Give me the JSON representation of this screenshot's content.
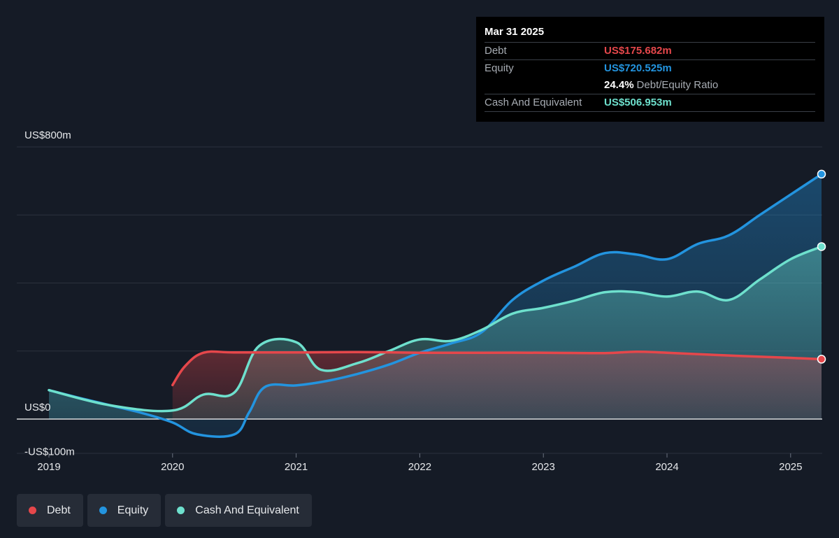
{
  "colors": {
    "debt": "#e5474b",
    "equity": "#2394df",
    "cash": "#6ee0cd",
    "grid": "#2c323d",
    "zero": "#ffffff"
  },
  "tooltip": {
    "date": "Mar 31 2025",
    "debt_label": "Debt",
    "debt_value": "US$175.682m",
    "equity_label": "Equity",
    "equity_value": "US$720.525m",
    "ratio_value": "24.4%",
    "ratio_label": "Debt/Equity Ratio",
    "cash_label": "Cash And Equivalent",
    "cash_value": "US$506.953m"
  },
  "legend": [
    {
      "key": "debt",
      "label": "Debt"
    },
    {
      "key": "equity",
      "label": "Equity"
    },
    {
      "key": "cash",
      "label": "Cash And Equivalent"
    }
  ],
  "chart_data": {
    "type": "area",
    "title": "",
    "xlabel": "",
    "ylabel": "",
    "ylim": [
      -100,
      800
    ],
    "y_ticks": [
      {
        "value": 800,
        "label": "US$800m"
      },
      {
        "value": 0,
        "label": "US$0"
      },
      {
        "value": -100,
        "label": "-US$100m"
      }
    ],
    "x_ticks": [
      2019,
      2020,
      2021,
      2022,
      2023,
      2024,
      2025
    ],
    "xlim": [
      2019,
      2025.25
    ],
    "grid": true,
    "legend_position": "bottom-left",
    "series": [
      {
        "key": "debt",
        "name": "Debt",
        "points": [
          [
            2020.0,
            100
          ],
          [
            2020.1,
            155
          ],
          [
            2020.25,
            195
          ],
          [
            2020.5,
            196
          ],
          [
            2021.0,
            196
          ],
          [
            2021.5,
            197
          ],
          [
            2022.0,
            195
          ],
          [
            2022.5,
            195
          ],
          [
            2023.0,
            195
          ],
          [
            2023.5,
            194
          ],
          [
            2023.75,
            198
          ],
          [
            2024.0,
            195
          ],
          [
            2024.5,
            187
          ],
          [
            2025.0,
            180
          ],
          [
            2025.25,
            176
          ]
        ]
      },
      {
        "key": "equity",
        "name": "Equity",
        "points": [
          [
            2019.0,
            85
          ],
          [
            2019.25,
            62
          ],
          [
            2019.5,
            40
          ],
          [
            2019.75,
            18
          ],
          [
            2020.0,
            -10
          ],
          [
            2020.2,
            -45
          ],
          [
            2020.5,
            -45
          ],
          [
            2020.62,
            20
          ],
          [
            2020.75,
            95
          ],
          [
            2021.0,
            99
          ],
          [
            2021.25,
            112
          ],
          [
            2021.5,
            133
          ],
          [
            2021.75,
            160
          ],
          [
            2022.0,
            195
          ],
          [
            2022.25,
            222
          ],
          [
            2022.5,
            255
          ],
          [
            2022.75,
            350
          ],
          [
            2023.0,
            407
          ],
          [
            2023.25,
            448
          ],
          [
            2023.5,
            488
          ],
          [
            2023.75,
            484
          ],
          [
            2024.0,
            470
          ],
          [
            2024.25,
            515
          ],
          [
            2024.5,
            540
          ],
          [
            2024.75,
            600
          ],
          [
            2025.0,
            660
          ],
          [
            2025.25,
            720
          ]
        ]
      },
      {
        "key": "cash",
        "name": "Cash And Equivalent",
        "points": [
          [
            2019.0,
            85
          ],
          [
            2019.5,
            40
          ],
          [
            2020.0,
            25
          ],
          [
            2020.25,
            72
          ],
          [
            2020.5,
            78
          ],
          [
            2020.7,
            215
          ],
          [
            2021.0,
            226
          ],
          [
            2021.2,
            145
          ],
          [
            2021.5,
            165
          ],
          [
            2021.75,
            200
          ],
          [
            2022.0,
            234
          ],
          [
            2022.25,
            230
          ],
          [
            2022.5,
            262
          ],
          [
            2022.75,
            310
          ],
          [
            2023.0,
            327
          ],
          [
            2023.25,
            348
          ],
          [
            2023.5,
            373
          ],
          [
            2023.75,
            373
          ],
          [
            2024.0,
            360
          ],
          [
            2024.25,
            375
          ],
          [
            2024.5,
            350
          ],
          [
            2024.75,
            410
          ],
          [
            2025.0,
            470
          ],
          [
            2025.25,
            507
          ]
        ]
      }
    ]
  }
}
